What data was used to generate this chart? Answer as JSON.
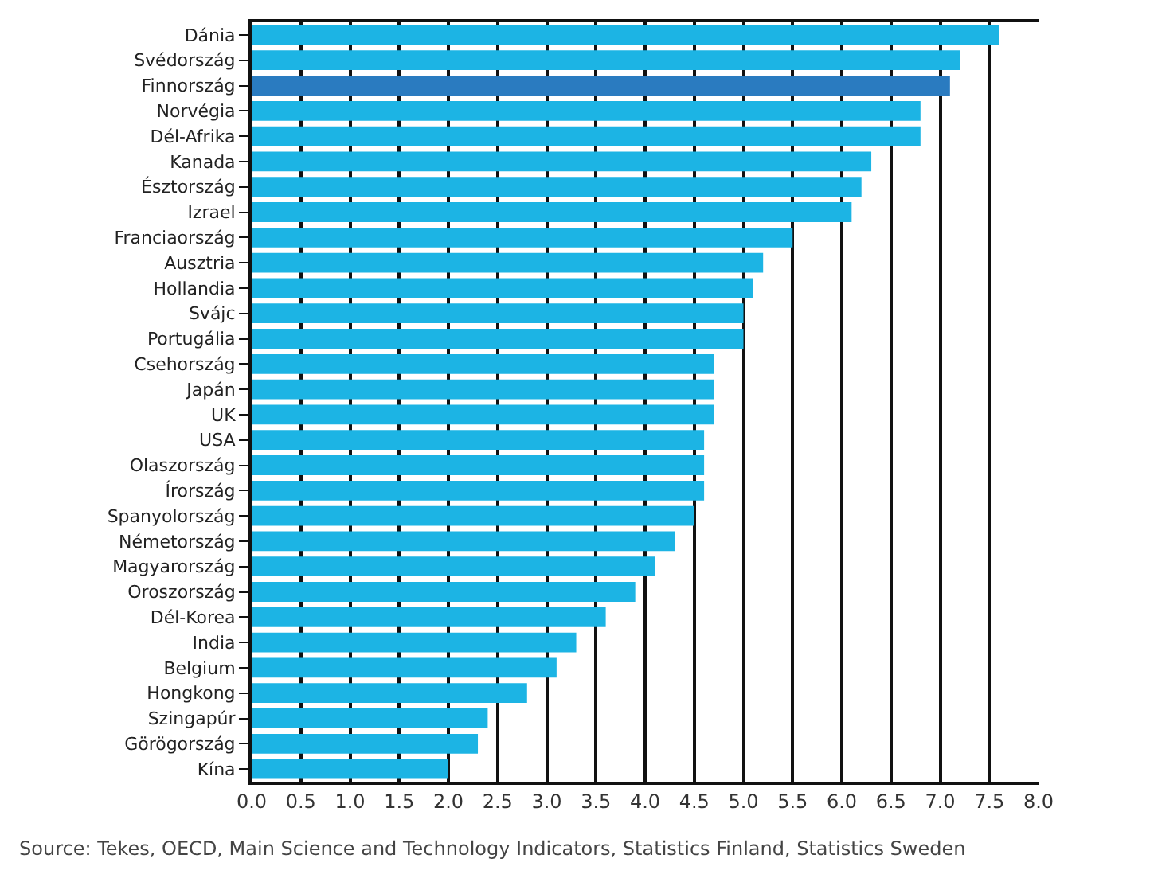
{
  "chart_data": {
    "type": "bar",
    "orientation": "horizontal",
    "categories": [
      "Dánia",
      "Svédország",
      "Finnország",
      "Norvégia",
      "Dél-Afrika",
      "Kanada",
      "Észtország",
      "Izrael",
      "Franciaország",
      "Ausztria",
      "Hollandia",
      "Svájc",
      "Portugália",
      "Csehország",
      "Japán",
      "UK",
      "USA",
      "Olaszország",
      "Írország",
      "Spanyolország",
      "Németország",
      "Magyarország",
      "Oroszország",
      "Dél-Korea",
      "India",
      "Belgium",
      "Hongkong",
      "Szingapúr",
      "Görögország",
      "Kína"
    ],
    "values": [
      7.6,
      7.2,
      7.1,
      6.8,
      6.8,
      6.3,
      6.2,
      6.1,
      5.5,
      5.2,
      5.1,
      5.0,
      5.0,
      4.7,
      4.7,
      4.7,
      4.6,
      4.6,
      4.6,
      4.5,
      4.3,
      4.1,
      3.9,
      3.6,
      3.3,
      3.1,
      2.8,
      2.4,
      2.3,
      2.0
    ],
    "colors": [
      "#1cb4e4",
      "#1cb4e4",
      "#2a7bc0",
      "#1cb4e4",
      "#1cb4e4",
      "#1cb4e4",
      "#1cb4e4",
      "#1cb4e4",
      "#1cb4e4",
      "#1cb4e4",
      "#1cb4e4",
      "#1cb4e4",
      "#1cb4e4",
      "#1cb4e4",
      "#1cb4e4",
      "#1cb4e4",
      "#1cb4e4",
      "#1cb4e4",
      "#1cb4e4",
      "#1cb4e4",
      "#1cb4e4",
      "#1cb4e4",
      "#1cb4e4",
      "#1cb4e4",
      "#1cb4e4",
      "#1cb4e4",
      "#1cb4e4",
      "#1cb4e4",
      "#1cb4e4",
      "#1cb4e4"
    ],
    "xlim": [
      0,
      8.0
    ],
    "xticks": [
      {
        "value": 0,
        "label": "0.0"
      },
      0.5,
      {
        "value": 1,
        "label": "1.0"
      },
      1.5,
      {
        "value": 2,
        "label": "2.0"
      },
      2.5,
      {
        "value": 3,
        "label": "3.0"
      },
      3.5,
      {
        "value": 4,
        "label": "4.0"
      },
      4.5,
      {
        "value": 5,
        "label": "5.0"
      },
      5.5,
      {
        "value": 6,
        "label": "6.0"
      },
      6.5,
      {
        "value": 7,
        "label": "7.0"
      },
      7.5,
      {
        "value": 8,
        "label": "8.0"
      }
    ],
    "grid": "x",
    "legend": false,
    "annotations": [
      "Source: Tekes, OECD, Main Science and Technology Indicators, Statistics Finland, Statistics Sweden"
    ]
  }
}
